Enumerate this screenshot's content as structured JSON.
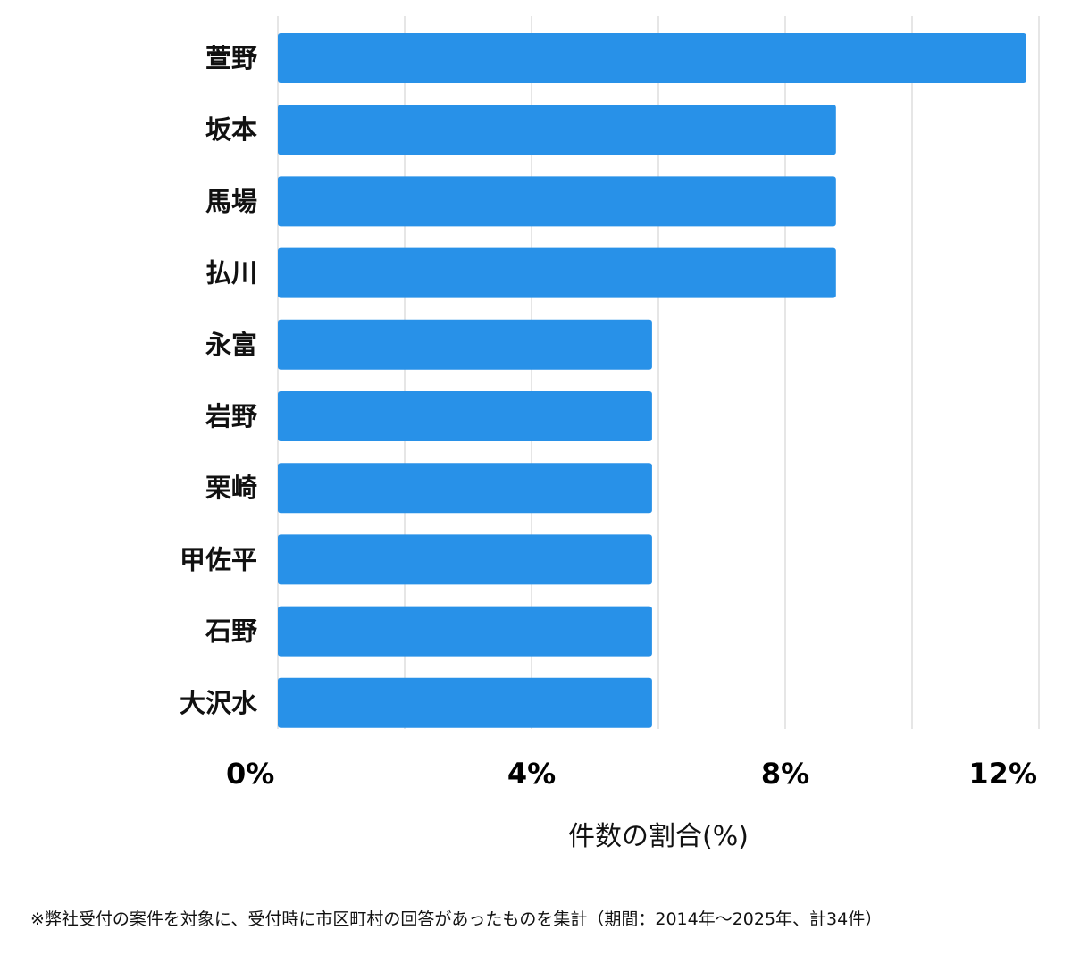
{
  "chart_data": {
    "type": "bar",
    "orientation": "horizontal",
    "categories": [
      "萱野",
      "坂本",
      "馬場",
      "払川",
      "永富",
      "岩野",
      "栗崎",
      "甲佐平",
      "石野",
      "大沢水"
    ],
    "values": [
      11.8,
      8.8,
      8.8,
      8.8,
      5.9,
      5.9,
      5.9,
      5.9,
      5.9,
      5.9
    ],
    "xlim": [
      0,
      12
    ],
    "xticks": [
      0,
      4,
      8,
      12
    ],
    "xtick_labels": [
      "0%",
      "4%",
      "8%",
      "12%"
    ],
    "xlabel": "件数の割合(%)",
    "ylabel": "",
    "title": "",
    "grid": true,
    "bar_color": "#2891e8",
    "grid_color": "#dddddd"
  },
  "footnote": "※弊社受付の案件を対象に、受付時に市区町村の回答があったものを集計（期間：2014年～2025年、計34件）"
}
